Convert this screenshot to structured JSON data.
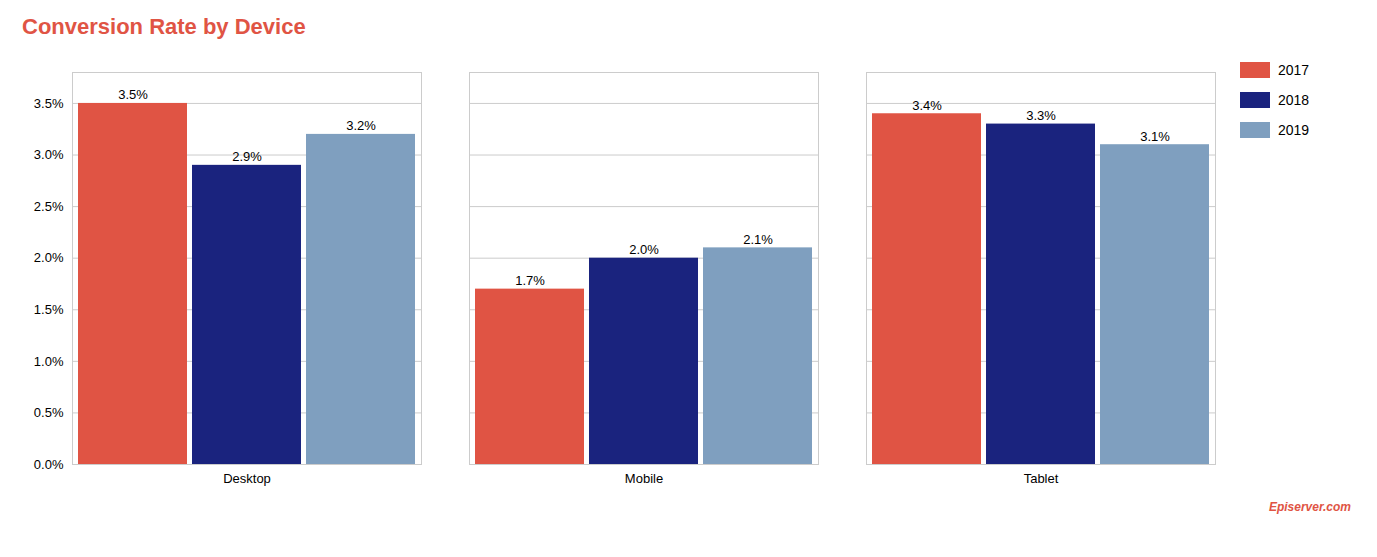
{
  "chart_data": {
    "type": "bar",
    "title": "Conversion Rate by Device",
    "categories": [
      "Desktop",
      "Mobile",
      "Tablet"
    ],
    "series": [
      {
        "name": "2017",
        "color": "#e05444",
        "values": [
          3.5,
          1.7,
          3.4
        ],
        "value_labels": [
          "3.5%",
          "1.7%",
          "3.4%"
        ]
      },
      {
        "name": "2018",
        "color": "#1a237e",
        "values": [
          2.9,
          2.0,
          3.3
        ],
        "value_labels": [
          "2.9%",
          "2.0%",
          "3.3%"
        ]
      },
      {
        "name": "2019",
        "color": "#7f9fbf",
        "values": [
          3.2,
          2.1,
          3.1
        ],
        "value_labels": [
          "3.2%",
          "2.1%",
          "3.1%"
        ]
      }
    ],
    "ylim": [
      0,
      3.8
    ],
    "yticks": [
      {
        "value": 0.0,
        "label": "0.0%"
      },
      {
        "value": 0.5,
        "label": "0.5%"
      },
      {
        "value": 1.0,
        "label": "1.0%"
      },
      {
        "value": 1.5,
        "label": "1.5%"
      },
      {
        "value": 2.0,
        "label": "2.0%"
      },
      {
        "value": 2.5,
        "label": "2.5%"
      },
      {
        "value": 3.0,
        "label": "3.0%"
      },
      {
        "value": 3.5,
        "label": "3.5%"
      }
    ],
    "grid": true,
    "data_labels": true,
    "legend": "right",
    "annotations": [
      "Episerver.com"
    ]
  }
}
